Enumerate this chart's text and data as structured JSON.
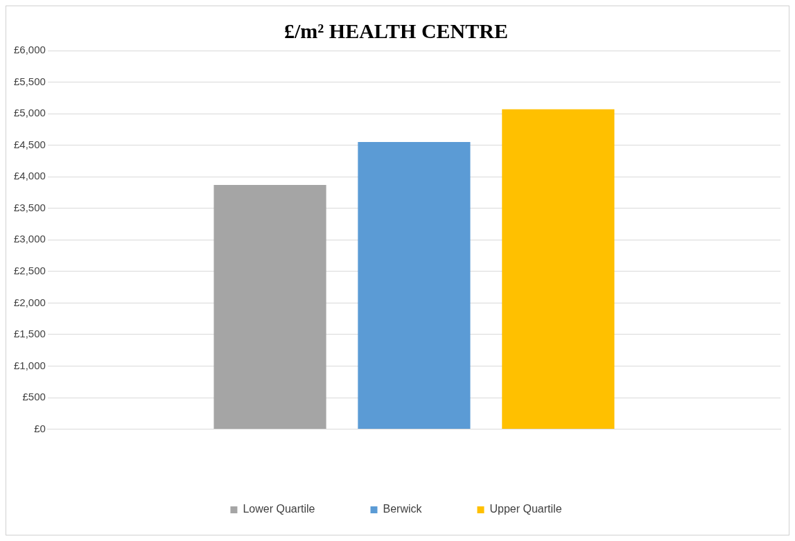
{
  "chart_data": {
    "type": "bar",
    "title": "£/m² HEALTH CENTRE",
    "categories": [
      null
    ],
    "series": [
      {
        "name": "Lower Quartile",
        "color": "#a5a5a5",
        "values": [
          3870
        ]
      },
      {
        "name": "Berwick",
        "color": "#5b9bd5",
        "values": [
          4550
        ]
      },
      {
        "name": "Upper Quartile",
        "color": "#ffc000",
        "values": [
          5070
        ]
      }
    ],
    "ylim": [
      0,
      6000
    ],
    "yticks": [
      {
        "value": 0,
        "label": "£0"
      },
      {
        "value": 500,
        "label": "£500"
      },
      {
        "value": 1000,
        "label": "£1,000"
      },
      {
        "value": 1500,
        "label": "£1,500"
      },
      {
        "value": 2000,
        "label": "£2,000"
      },
      {
        "value": 2500,
        "label": "£2,500"
      },
      {
        "value": 3000,
        "label": "£3,000"
      },
      {
        "value": 3500,
        "label": "£3,500"
      },
      {
        "value": 4000,
        "label": "£4,000"
      },
      {
        "value": 4500,
        "label": "£4,500"
      },
      {
        "value": 5000,
        "label": "£5,000"
      },
      {
        "value": 5500,
        "label": "£5,500"
      },
      {
        "value": 6000,
        "label": "£6,000"
      }
    ],
    "grid": "y",
    "legend": "bottom"
  }
}
